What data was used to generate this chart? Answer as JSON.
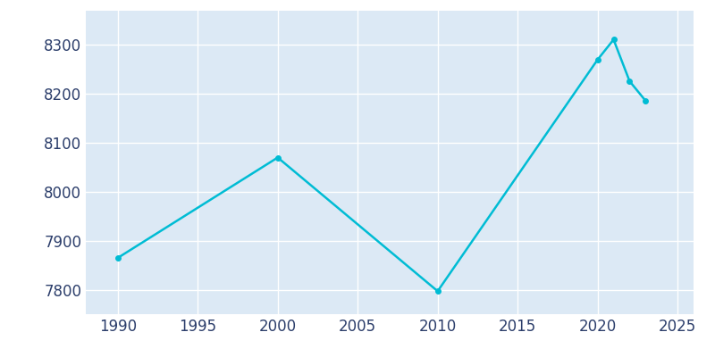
{
  "years": [
    1990,
    2000,
    2010,
    2020,
    2021,
    2022,
    2023
  ],
  "population": [
    7865,
    8070,
    7797,
    8270,
    8311,
    8226,
    8186
  ],
  "line_color": "#00bcd4",
  "marker": "o",
  "marker_size": 4,
  "line_width": 1.8,
  "plot_bg_color": "#dce9f5",
  "fig_bg_color": "#ffffff",
  "grid_color": "#ffffff",
  "tick_color": "#2c3e6b",
  "xlim": [
    1988,
    2026
  ],
  "ylim": [
    7750,
    8370
  ],
  "yticks": [
    7800,
    7900,
    8000,
    8100,
    8200,
    8300
  ],
  "xticks": [
    1990,
    1995,
    2000,
    2005,
    2010,
    2015,
    2020,
    2025
  ],
  "tick_fontsize": 12
}
